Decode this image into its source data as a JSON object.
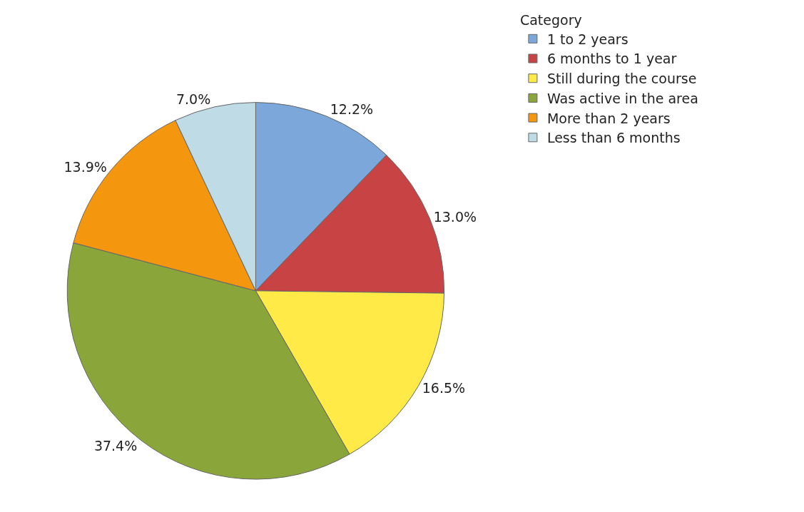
{
  "chart_data": {
    "type": "pie",
    "legend_title": "Category",
    "legend": "top right",
    "categories": [
      "1 to 2 years",
      "6 months to 1 year",
      "Still during the course",
      "Was active in the area",
      "More than 2 years",
      "Less than 6 months"
    ],
    "values": [
      12.2,
      13.0,
      16.5,
      37.4,
      13.9,
      7.0
    ],
    "value_labels": [
      "12.2%",
      "13.0%",
      "16.5%",
      "37.4%",
      "13.9%",
      "7.0%"
    ],
    "colors": [
      "#7ba7da",
      "#c84444",
      "#ffea47",
      "#8aa63a",
      "#f5960f",
      "#bedbe6"
    ]
  }
}
